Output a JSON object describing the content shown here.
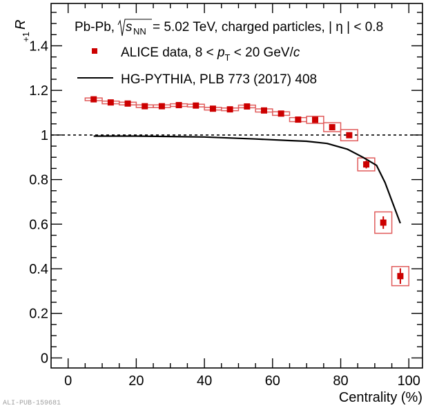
{
  "chart_data": {
    "type": "scatter",
    "title": "",
    "xlabel": "Centrality (%)",
    "ylabel": "R+1",
    "ylabel_main": "R",
    "ylabel_sub": "+1",
    "xlim": [
      -5,
      104
    ],
    "ylim": [
      -0.045,
      1.59
    ],
    "xticks": [
      0,
      20,
      40,
      60,
      80,
      100
    ],
    "xtick_labels": [
      "0",
      "20",
      "40",
      "60",
      "80",
      "100"
    ],
    "yticks": [
      0,
      0.2,
      0.4,
      0.6,
      0.8,
      1,
      1.2,
      1.4
    ],
    "ytick_labels": [
      "0",
      "0.2",
      "0.4",
      "0.6",
      "0.8",
      "1",
      "1.2",
      "1.4"
    ],
    "grid": false,
    "reference_line": {
      "y": 1,
      "style": "dotted"
    },
    "header": {
      "system": "Pb-Pb,",
      "sqrt_s": "s",
      "sqrt_sub": "NN",
      "energy": "= 5.02 TeV, charged particles, | η | < 0.8"
    },
    "legend_position": "top-left",
    "series": [
      {
        "name": "ALICE data",
        "label_prefix": "ALICE data, 8 < ",
        "label_p": "p",
        "label_sub": "T",
        "label_suffix": " < 20 GeV/",
        "label_c": "c",
        "kind": "points",
        "color": "#cc0000",
        "x": [
          7.5,
          12.5,
          17.5,
          22.5,
          27.5,
          32.5,
          37.5,
          42.5,
          47.5,
          52.5,
          57.5,
          62.5,
          67.5,
          72.5,
          77.5,
          82.5,
          87.5,
          92.5,
          97.5
        ],
        "y": [
          1.16,
          1.146,
          1.141,
          1.129,
          1.129,
          1.134,
          1.132,
          1.118,
          1.115,
          1.128,
          1.11,
          1.096,
          1.069,
          1.068,
          1.035,
          0.999,
          0.868,
          0.607,
          0.367
        ],
        "stat_err": [
          0.003,
          0.003,
          0.003,
          0.003,
          0.003,
          0.003,
          0.003,
          0.003,
          0.003,
          0.003,
          0.004,
          0.004,
          0.005,
          0.006,
          0.008,
          0.012,
          0.018,
          0.028,
          0.035
        ],
        "sys_err": [
          0.006,
          0.006,
          0.006,
          0.006,
          0.006,
          0.006,
          0.006,
          0.006,
          0.006,
          0.006,
          0.007,
          0.008,
          0.009,
          0.016,
          0.02,
          0.025,
          0.029,
          0.048,
          0.043
        ],
        "bin_halfwidth": 2.5
      },
      {
        "name": "HG-PYTHIA, PLB 773 (2017) 408",
        "kind": "line",
        "color": "#000000",
        "x": [
          7.5,
          20,
          40,
          55,
          65,
          70,
          76,
          82,
          86.5,
          90.5,
          93,
          95,
          97.5
        ],
        "y": [
          0.995,
          0.995,
          0.991,
          0.982,
          0.975,
          0.972,
          0.962,
          0.936,
          0.9,
          0.864,
          0.787,
          0.705,
          0.604
        ]
      }
    ]
  },
  "watermark": "ALI-PUB-159681"
}
